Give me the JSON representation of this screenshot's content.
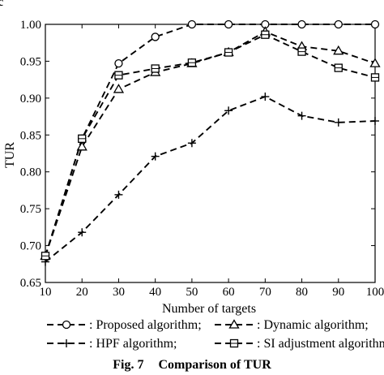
{
  "chart_data": {
    "type": "line",
    "title": "",
    "xlabel": "Number of targets",
    "ylabel": "TUR",
    "x": [
      10,
      20,
      30,
      40,
      50,
      60,
      70,
      80,
      90,
      100
    ],
    "xlim": [
      10,
      100
    ],
    "ylim": [
      0.65,
      1.0
    ],
    "x_ticks": [
      "10",
      "20",
      "30",
      "40",
      "50",
      "60",
      "70",
      "80",
      "90",
      "100"
    ],
    "y_ticks": [
      "0.65",
      "0.70",
      "0.75",
      "0.80",
      "0.85",
      "0.90",
      "0.95",
      "1.00"
    ],
    "grid": false,
    "legend_position": "below",
    "series": [
      {
        "name": ": Proposed algorithm;",
        "marker": "circle",
        "values": [
          0.686,
          0.845,
          0.947,
          0.983,
          1.0,
          1.0,
          1.0,
          1.0,
          1.0,
          1.0
        ]
      },
      {
        "name": ": Dynamic algorithm;",
        "marker": "triangle",
        "values": [
          0.686,
          0.834,
          0.912,
          0.935,
          0.947,
          0.962,
          0.99,
          0.97,
          0.964,
          0.947
        ]
      },
      {
        "name": ": HPF algorithm;",
        "marker": "plus",
        "values": [
          0.678,
          0.718,
          0.769,
          0.821,
          0.839,
          0.883,
          0.902,
          0.876,
          0.867,
          0.869
        ]
      },
      {
        "name": ": SI adjustment algorithm.",
        "marker": "square",
        "values": [
          0.686,
          0.845,
          0.931,
          0.94,
          0.948,
          0.962,
          0.986,
          0.963,
          0.941,
          0.928
        ]
      }
    ]
  },
  "caption": {
    "label": "Fig. 7",
    "text": "Comparison of TUR"
  },
  "corner_label": "c"
}
